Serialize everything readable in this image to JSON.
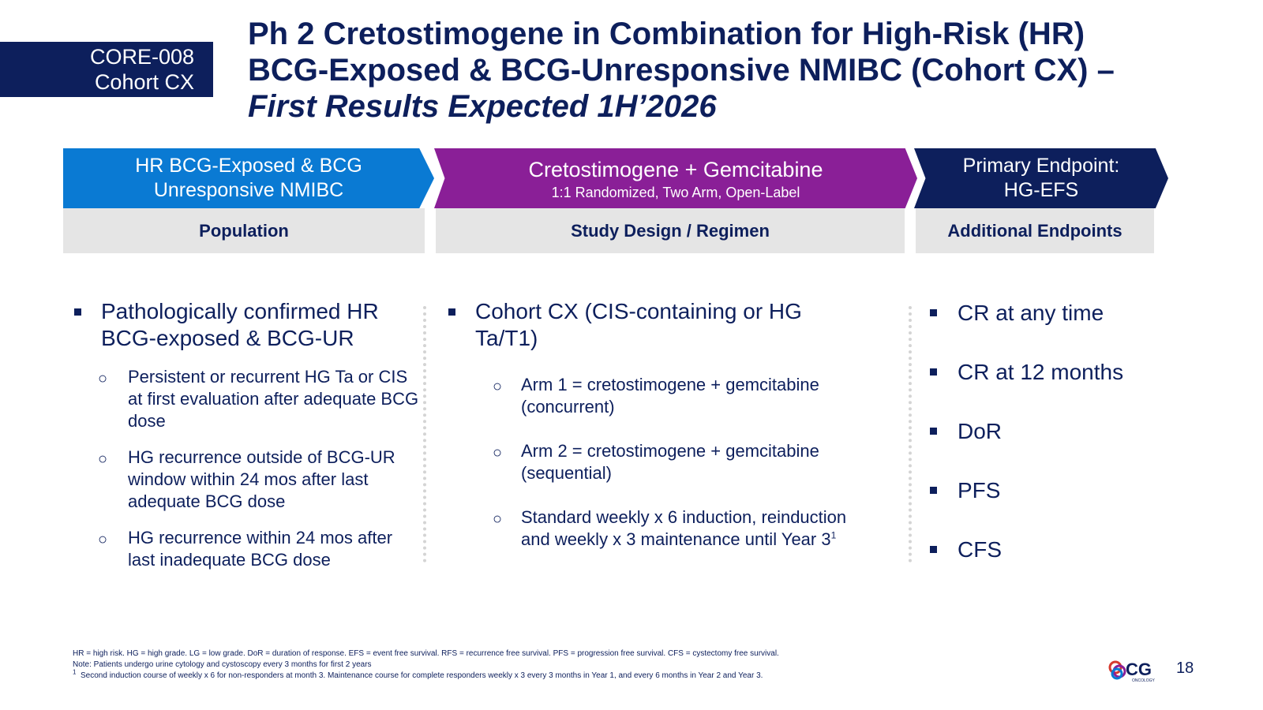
{
  "tag": {
    "line1": "CORE-008",
    "line2": "Cohort CX"
  },
  "title": {
    "line1": "Ph 2 Cretostimogene in Combination for High-Risk (HR)",
    "line2": "BCG-Exposed & BCG-Unresponsive NMIBC (Cohort CX) –",
    "line3": "First Results Expected 1H’2026"
  },
  "chevrons": {
    "population": {
      "line1": "HR BCG-Exposed & BCG",
      "line2": "Unresponsive NMIBC"
    },
    "design": {
      "title": "Cretostimogene + Gemcitabine",
      "subtitle": "1:1 Randomized, Two Arm, Open-Label"
    },
    "endpoint": {
      "line1": "Primary Endpoint:",
      "line2": "HG-EFS"
    }
  },
  "labels": {
    "population": "Population",
    "design": "Study Design / Regimen",
    "endpoints": "Additional Endpoints"
  },
  "population": {
    "bullet": "Pathologically confirmed HR BCG-exposed & BCG-UR",
    "subs": [
      "Persistent or recurrent HG Ta or CIS at first evaluation after adequate BCG dose",
      "HG recurrence outside of BCG-UR window within 24 mos after last adequate BCG dose",
      "HG recurrence within 24 mos after last inadequate BCG dose"
    ]
  },
  "design": {
    "bullet": "Cohort CX (CIS-containing or HG Ta/T1)",
    "subs": [
      "Arm 1 = cretostimogene + gemcitabine (concurrent)",
      "Arm 2 = cretostimogene + gemcitabine (sequential)",
      "Standard weekly x 6 induction, reinduction and weekly x 3 maintenance until Year 3"
    ],
    "footnote_ref": "1"
  },
  "endpoints": [
    "CR at any time",
    "CR at 12 months",
    "DoR",
    "PFS",
    "CFS"
  ],
  "footer": {
    "line1": "HR = high risk. HG = high grade. LG = low grade. DoR = duration of response. EFS = event free survival. RFS = recurrence free survival. PFS = progression free survival. CFS = cystectomy free survival.",
    "line2": "Note: Patients undergo urine cytology and cystoscopy every 3 months for first 2 years",
    "note_mark": "1",
    "line3": "Second induction course of weekly x 6 for non-responders at month 3. Maintenance course for complete responders weekly x 3 every 3 months in Year 1, and every 6 months in Year 2 and Year 3."
  },
  "logo": {
    "text": "CG",
    "subtext": "ONCOLOGY"
  },
  "page_number": "18",
  "colors": {
    "navy": "#0d1f5c",
    "blue": "#0a7ad3",
    "purple": "#8a1f97",
    "label_gray": "#e5e5e5"
  }
}
